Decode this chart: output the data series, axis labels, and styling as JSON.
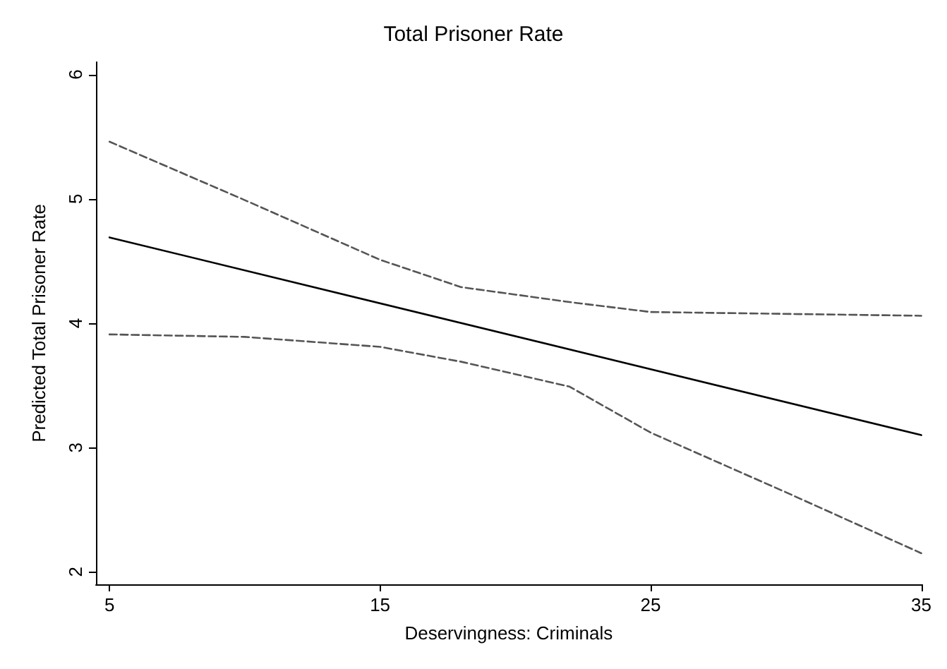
{
  "chart_data": {
    "type": "line",
    "title": "Total Prisoner Rate",
    "xlabel": "Deservingness: Criminals",
    "ylabel": "Predicted Total Prisoner Rate",
    "xlim": [
      4.5,
      35
    ],
    "xticks": [
      5,
      15,
      25,
      35
    ],
    "ylim": [
      1.9,
      6.1
    ],
    "yticks": [
      2,
      3,
      4,
      5,
      6
    ],
    "grid": false,
    "marker": "none",
    "series": [
      {
        "color": "#000000",
        "line_style": "solid",
        "x": [
          5,
          35
        ],
        "values": [
          4.69,
          3.1
        ]
      },
      {
        "color": "#555555",
        "line_style": "dashed",
        "x": [
          5,
          10,
          15,
          18,
          22,
          25,
          35
        ],
        "values": [
          5.46,
          4.99,
          4.51,
          4.29,
          4.17,
          4.09,
          4.06
        ]
      },
      {
        "color": "#555555",
        "line_style": "dashed",
        "x": [
          5,
          10,
          15,
          18,
          22,
          25,
          30,
          35
        ],
        "values": [
          3.91,
          3.89,
          3.81,
          3.69,
          3.49,
          3.12,
          2.64,
          2.15
        ]
      }
    ]
  }
}
